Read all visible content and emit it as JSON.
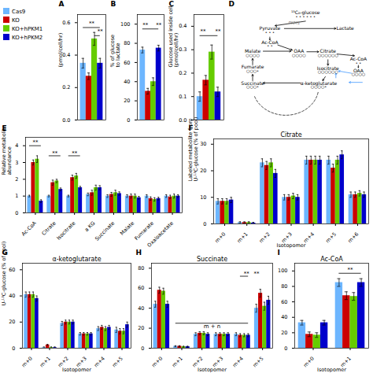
{
  "chart_data": [
    {
      "type": "bar",
      "categories": [
        null
      ],
      "series": [
        {
          "name": "Cas9",
          "color": "#6db6ff",
          "values": [
            0.35
          ],
          "errors": [
            0.03
          ]
        },
        {
          "name": "KO",
          "color": "#cc0000",
          "values": [
            0.27
          ],
          "errors": [
            0.02
          ]
        },
        {
          "name": "KO+hPKM1",
          "color": "#66cc00",
          "values": [
            0.5
          ],
          "errors": [
            0.04
          ]
        },
        {
          "name": "KO+hPKM2",
          "color": "#0000cc",
          "values": [
            0.35
          ],
          "errors": [
            0.03
          ]
        }
      ],
      "ylabel": "(pmol/cell/hr)",
      "ylim": [
        0,
        0.65
      ],
      "yticks": [
        {
          "value": 0,
          "label": "0.0"
        },
        0.2,
        0.4,
        0.6
      ],
      "legend": "upper left",
      "annotations": [
        {
          "text": "A"
        },
        {
          "bracket": [
            [
              null,
              "Cas9"
            ],
            [
              null,
              "KO+hPKM2"
            ]
          ],
          "y": 0.57
        },
        {
          "text": "**",
          "at": [
            [
              null,
              "Cas9"
            ],
            [
              null,
              "KO+hPKM2"
            ]
          ],
          "y": 0.585
        },
        {
          "bracket": [
            [
              null,
              "KO+hPKM1"
            ],
            [
              null,
              "KO+hPKM2"
            ]
          ],
          "y": 0.52
        },
        {
          "text": "**",
          "at": [
            [
              null,
              "KO+hPKM2"
            ]
          ],
          "y": 0.535
        }
      ]
    },
    {
      "type": "bar",
      "categories": [
        null
      ],
      "series": [
        {
          "name": "Cas9",
          "color": "#6db6ff",
          "values": [
            73
          ],
          "errors": [
            3
          ]
        },
        {
          "name": "KO",
          "color": "#cc0000",
          "values": [
            30
          ],
          "errors": [
            3
          ]
        },
        {
          "name": "KO+hPKM1",
          "color": "#66cc00",
          "values": [
            40
          ],
          "errors": [
            4
          ]
        },
        {
          "name": "KO+hPKM2",
          "color": "#0000cc",
          "values": [
            75
          ],
          "errors": [
            3
          ]
        }
      ],
      "ylabel": "% of glucose\nto lactate",
      "ylim": [
        0,
        110
      ],
      "yticks": [
        0,
        20,
        40,
        60,
        80,
        100
      ],
      "annotations": [
        {
          "text": "B"
        },
        {
          "bracket": [
            [
              null,
              "Cas9"
            ],
            [
              null,
              "KO+hPKM2"
            ]
          ],
          "y": 95
        },
        {
          "text": "**",
          "at": [
            [
              null,
              "Cas9"
            ],
            [
              null,
              "KO"
            ]
          ],
          "y": 97
        },
        {
          "text": "**",
          "at": [
            [
              null,
              "KO+hPKM2"
            ]
          ],
          "y": 97
        }
      ]
    },
    {
      "type": "bar",
      "categories": [
        null
      ],
      "series": [
        {
          "name": "Cas9",
          "color": "#6db6ff",
          "values": [
            0.1
          ],
          "errors": [
            0.02
          ]
        },
        {
          "name": "KO",
          "color": "#cc0000",
          "values": [
            0.17
          ],
          "errors": [
            0.02
          ]
        },
        {
          "name": "KO+hPKM1",
          "color": "#66cc00",
          "values": [
            0.29
          ],
          "errors": [
            0.03
          ]
        },
        {
          "name": "KO+hPKM2",
          "color": "#0000cc",
          "values": [
            0.12
          ],
          "errors": [
            0.02
          ]
        }
      ],
      "ylabel": "Glucose used inside cell\n(pmol/cell/hr)",
      "ylim": [
        0,
        0.45
      ],
      "yticks": [
        {
          "value": 0,
          "label": "0.0"
        },
        0.1,
        0.2,
        0.3,
        0.4
      ],
      "annotations": [
        {
          "text": "C"
        },
        {
          "bracket": [
            [
              null,
              "Cas9"
            ],
            [
              null,
              "KO+hPKM2"
            ]
          ],
          "y": 0.36
        },
        {
          "text": "**",
          "at": [
            [
              null,
              "Cas9"
            ],
            [
              null,
              "KO"
            ]
          ],
          "y": 0.37
        },
        {
          "text": "**",
          "at": [
            [
              null,
              "KO+hPKM2"
            ]
          ],
          "y": 0.37
        }
      ]
    },
    {
      "type": "diagram",
      "color": "#4499ff",
      "annotations": [
        {
          "text": "D"
        },
        {
          "text": "¹³C₆-glucose"
        },
        {
          "text": "• • • • • •"
        },
        {
          "text": "Pyruvate"
        },
        {
          "text": "• • •"
        },
        {
          "text": "Lactate"
        },
        {
          "text": "Ac-CoA"
        },
        {
          "text": "• •"
        },
        {
          "text": "OAA"
        },
        {
          "text": "○○○○"
        },
        {
          "text": "Citrate"
        },
        {
          "text": "○○○○○○"
        },
        {
          "text": "Ac-CoA"
        },
        {
          "text": "• •"
        },
        {
          "text": "OAA"
        },
        {
          "text": "○○○○"
        },
        {
          "text": "Isocitrate"
        },
        {
          "text": "○○○○○○"
        },
        {
          "text": "α-ketoglutarate"
        },
        {
          "text": "○○○○•"
        },
        {
          "text": "Malate"
        },
        {
          "text": "○○○○"
        },
        {
          "text": "Fumarate"
        },
        {
          "text": "○○○•"
        },
        {
          "text": "Succinate"
        },
        {
          "text": "○○○•"
        },
        {
          "text": "PKM1",
          "color": "gray"
        }
      ]
    },
    {
      "type": "bar",
      "categories": [
        "Ac-CoA",
        "Citrate",
        "Isocitrate",
        "a KG",
        "Succinate",
        "Malate",
        "Fumarate",
        "Oxaloacetate"
      ],
      "series": [
        {
          "name": "Cas9",
          "color": "#6db6ff",
          "values": [
            1.0,
            1.0,
            1.0,
            1.1,
            1.0,
            1.0,
            1.0,
            1.0
          ],
          "errors": [
            0.05,
            0.05,
            0.05,
            0.08,
            0.08,
            0.08,
            0.08,
            0.08
          ]
        },
        {
          "name": "KO",
          "color": "#cc0000",
          "values": [
            3.0,
            1.8,
            2.1,
            1.2,
            1.1,
            1.0,
            0.85,
            0.95
          ],
          "errors": [
            0.15,
            0.15,
            0.15,
            0.15,
            0.12,
            0.12,
            0.1,
            0.1
          ]
        },
        {
          "name": "KO+hPKM1",
          "color": "#66cc00",
          "values": [
            3.2,
            1.9,
            2.2,
            1.5,
            1.2,
            1.0,
            0.8,
            1.0
          ],
          "errors": [
            0.2,
            0.1,
            0.15,
            0.15,
            0.15,
            0.12,
            0.1,
            0.12
          ]
        },
        {
          "name": "KO+hPKM2",
          "color": "#0000cc",
          "values": [
            0.7,
            1.4,
            1.5,
            1.5,
            1.15,
            0.9,
            0.85,
            1.0
          ],
          "errors": [
            0.08,
            0.08,
            0.08,
            0.12,
            0.1,
            0.08,
            0.08,
            0.08
          ]
        }
      ],
      "ylabel": "Relative metabolite\nabundance",
      "ylim": [
        0,
        4.5
      ],
      "yticks": [
        0,
        1,
        2,
        3,
        4
      ],
      "annotations": [
        {
          "text": "E"
        },
        {
          "bracket": [
            [
              "Ac-CoA",
              "Cas9"
            ],
            [
              "Ac-CoA",
              "KO+hPKM2"
            ]
          ],
          "y": 4.0
        },
        {
          "text": "**",
          "at": [
            [
              "Ac-CoA",
              "Cas9"
            ],
            [
              "Ac-CoA",
              "KO+hPKM2"
            ]
          ],
          "y": 4.08
        },
        {
          "bracket": [
            [
              "Citrate",
              "Cas9"
            ],
            [
              "Citrate",
              "KO+hPKM2"
            ]
          ],
          "y": 3.4
        },
        {
          "text": "**",
          "at": [
            [
              "Citrate",
              "Cas9"
            ],
            [
              "Citrate",
              "KO+hPKM2"
            ]
          ],
          "y": 3.45
        },
        {
          "bracket": [
            [
              "Isocitrate",
              "Cas9"
            ],
            [
              "Isocitrate",
              "KO+hPKM2"
            ]
          ],
          "y": 3.4
        },
        {
          "text": "**",
          "at": [
            [
              "Isocitrate",
              "Cas9"
            ],
            [
              "Isocitrate",
              "KO+hPKM2"
            ]
          ],
          "y": 3.45
        }
      ]
    },
    {
      "type": "bar",
      "title": "Citrate",
      "categories": [
        "m+0",
        "m+1",
        "m+2",
        "m+3",
        "m+4",
        "m+5",
        "m+6"
      ],
      "series": [
        {
          "name": "Cas9",
          "color": "#6db6ff",
          "values": [
            8.5,
            0.5,
            23,
            10,
            24,
            24,
            11
          ]
        },
        {
          "name": "KO",
          "color": "#cc0000",
          "values": [
            8.5,
            0.5,
            22,
            10,
            24,
            21,
            11
          ]
        },
        {
          "name": "KO+hPKM1",
          "color": "#66cc00",
          "values": [
            8.5,
            0.5,
            23,
            10.5,
            24,
            24,
            11.5
          ]
        },
        {
          "name": "KO+hPKM2",
          "color": "#0000cc",
          "values": [
            9.0,
            0.3,
            19,
            10,
            24,
            26,
            11
          ]
        }
      ],
      "errors": [
        1.0,
        0.3,
        1.5,
        1.0,
        1.5,
        1.5,
        1.0
      ],
      "xlabel": "Isotopomer",
      "ylabel": "Labeled metabolite from\nU-¹³C-glucose (% of pool)",
      "ylim": [
        0,
        32
      ],
      "yticks": [
        0,
        10,
        20,
        30
      ],
      "annotations": [
        {
          "text": "F"
        }
      ]
    },
    {
      "type": "bar",
      "title": "α-ketoglutarate",
      "categories": [
        "m+0",
        "m+1",
        "m+2",
        "m+3",
        "m+4",
        "m+5"
      ],
      "series": [
        {
          "name": "Cas9",
          "color": "#6db6ff",
          "values": [
            41,
            0.5,
            19,
            11,
            15,
            14
          ]
        },
        {
          "name": "KO",
          "color": "#cc0000",
          "values": [
            41,
            2.5,
            20,
            11,
            16,
            13
          ]
        },
        {
          "name": "KO+hPKM1",
          "color": "#66cc00",
          "values": [
            41,
            0.5,
            20,
            11,
            15,
            13
          ]
        },
        {
          "name": "KO+hPKM2",
          "color": "#0000cc",
          "values": [
            38,
            0.5,
            20,
            11,
            16,
            18
          ]
        }
      ],
      "errors": [
        2.0,
        0.5,
        1.5,
        1.0,
        1.5,
        2.0
      ],
      "xlabel": "Isotopomer",
      "ylabel": "U-¹³C-glucose (% of pool)",
      "ylim": [
        0,
        65
      ],
      "yticks": [
        0,
        20,
        40,
        60
      ],
      "annotations": [
        {
          "text": "G"
        }
      ]
    },
    {
      "type": "bar",
      "title": "Succinate",
      "categories": [
        "m+0",
        "m+1",
        "m+2",
        "m+3",
        "m+4",
        "m+5"
      ],
      "series": [
        {
          "name": "Cas9",
          "color": "#6db6ff",
          "values": [
            44,
            2.0,
            14,
            14,
            14,
            40
          ]
        },
        {
          "name": "KO",
          "color": "#cc0000",
          "values": [
            58,
            2.0,
            15,
            14,
            13,
            55
          ]
        },
        {
          "name": "KO+hPKM1",
          "color": "#66cc00",
          "values": [
            57,
            1.5,
            15,
            14,
            13,
            42
          ]
        },
        {
          "name": "KO+hPKM2",
          "color": "#0000cc",
          "values": [
            44,
            1.5,
            14,
            14,
            13,
            48
          ]
        }
      ],
      "errors": [
        3.0,
        0.5,
        1.5,
        1.5,
        1.5,
        4.0
      ],
      "xlabel": "Isotopomer",
      "ylim": [
        0,
        85
      ],
      "yticks": [
        0,
        20,
        40,
        60,
        80
      ],
      "annotations": [
        {
          "text": "H"
        },
        {
          "bracket": [
            [
              "m+1",
              "Cas9"
            ],
            [
              "m+4",
              "KO+hPKM2"
            ]
          ],
          "y": 25
        },
        {
          "text": "m + n",
          "at": [
            [
              "m+2",
              "KO+hPKM2"
            ],
            [
              "m+3",
              "Cas9"
            ]
          ],
          "y": 20
        },
        {
          "bracket": [
            [
              "m+4",
              "KO"
            ],
            [
              "m+4",
              "KO+hPKM2"
            ]
          ],
          "y": 72
        },
        {
          "text": "**",
          "at": [
            [
              "m+4",
              "KO+hPKM1"
            ],
            [
              "m+4",
              "KO+hPKM2"
            ]
          ],
          "y": 73
        },
        {
          "text": "**",
          "at": [
            [
              "m+5",
              "Cas9"
            ]
          ],
          "y": 73
        }
      ]
    },
    {
      "type": "bar",
      "title": "Ac-CoA",
      "categories": [
        "m+0",
        "m+1"
      ],
      "series": [
        {
          "name": "Cas9",
          "color": "#6db6ff",
          "values": [
            33,
            85
          ]
        },
        {
          "name": "KO",
          "color": "#cc0000",
          "values": [
            18,
            68
          ]
        },
        {
          "name": "KO+hPKM1",
          "color": "#66cc00",
          "values": [
            17,
            67
          ]
        },
        {
          "name": "KO+hPKM2",
          "color": "#0000cc",
          "values": [
            33,
            85
          ]
        }
      ],
      "errors": [
        3.0,
        5.0
      ],
      "xlabel": "Isotopomer",
      "ylim": [
        0,
        110
      ],
      "yticks": [
        0,
        20,
        40,
        60,
        80,
        100
      ],
      "annotations": [
        {
          "text": "I"
        },
        {
          "bracket": [
            [
              "m+1",
              "Cas9"
            ],
            [
              "m+1",
              "KO+hPKM2"
            ]
          ],
          "y": 97
        },
        {
          "text": "**",
          "at": [
            [
              "m+1",
              "Cas9"
            ],
            [
              "m+1",
              "KO+hPKM2"
            ]
          ],
          "y": 99
        }
      ]
    }
  ]
}
